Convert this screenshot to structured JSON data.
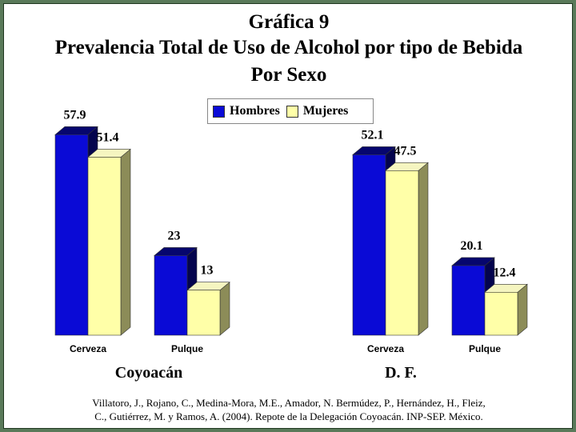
{
  "title": {
    "line1": "Gráfica 9",
    "line2": "Prevalencia Total de Uso de Alcohol por tipo de Bebida",
    "line3": "Por Sexo"
  },
  "legend": {
    "hombres": "Hombres",
    "mujeres": "Mujeres"
  },
  "colors": {
    "hombres_front": "#0a0ad6",
    "hombres_top": "#06066e",
    "hombres_side": "#04044e",
    "mujeres_front": "#ffffa8",
    "mujeres_top": "#f5f5c0",
    "mujeres_side": "#8c8c58"
  },
  "chart_data": [
    {
      "type": "bar",
      "group_label": "Coyoacán",
      "categories": [
        "Cerveza",
        "Pulque"
      ],
      "series": [
        {
          "name": "Hombres",
          "values": [
            57.9,
            23
          ]
        },
        {
          "name": "Mujeres",
          "values": [
            51.4,
            13
          ]
        }
      ],
      "value_labels": [
        [
          "57.9",
          "51.4"
        ],
        [
          "23",
          "13"
        ]
      ]
    },
    {
      "type": "bar",
      "group_label": "D. F.",
      "categories": [
        "Cerveza",
        "Pulque"
      ],
      "series": [
        {
          "name": "Hombres",
          "values": [
            52.1,
            20.1
          ]
        },
        {
          "name": "Mujeres",
          "values": [
            47.5,
            12.4
          ]
        }
      ],
      "value_labels": [
        [
          "52.1",
          "47.5"
        ],
        [
          "20.1",
          "12.4"
        ]
      ]
    }
  ],
  "citation": {
    "line1": "Villatoro, J., Rojano, C., Medina-Mora, M.E., Amador, N. Bermúdez, P., Hernández, H., Fleiz,",
    "line2": "C., Gutiérrez, M. y Ramos, A. (2004). Repote de la Delegación Coyoacán. INP-SEP. México."
  }
}
